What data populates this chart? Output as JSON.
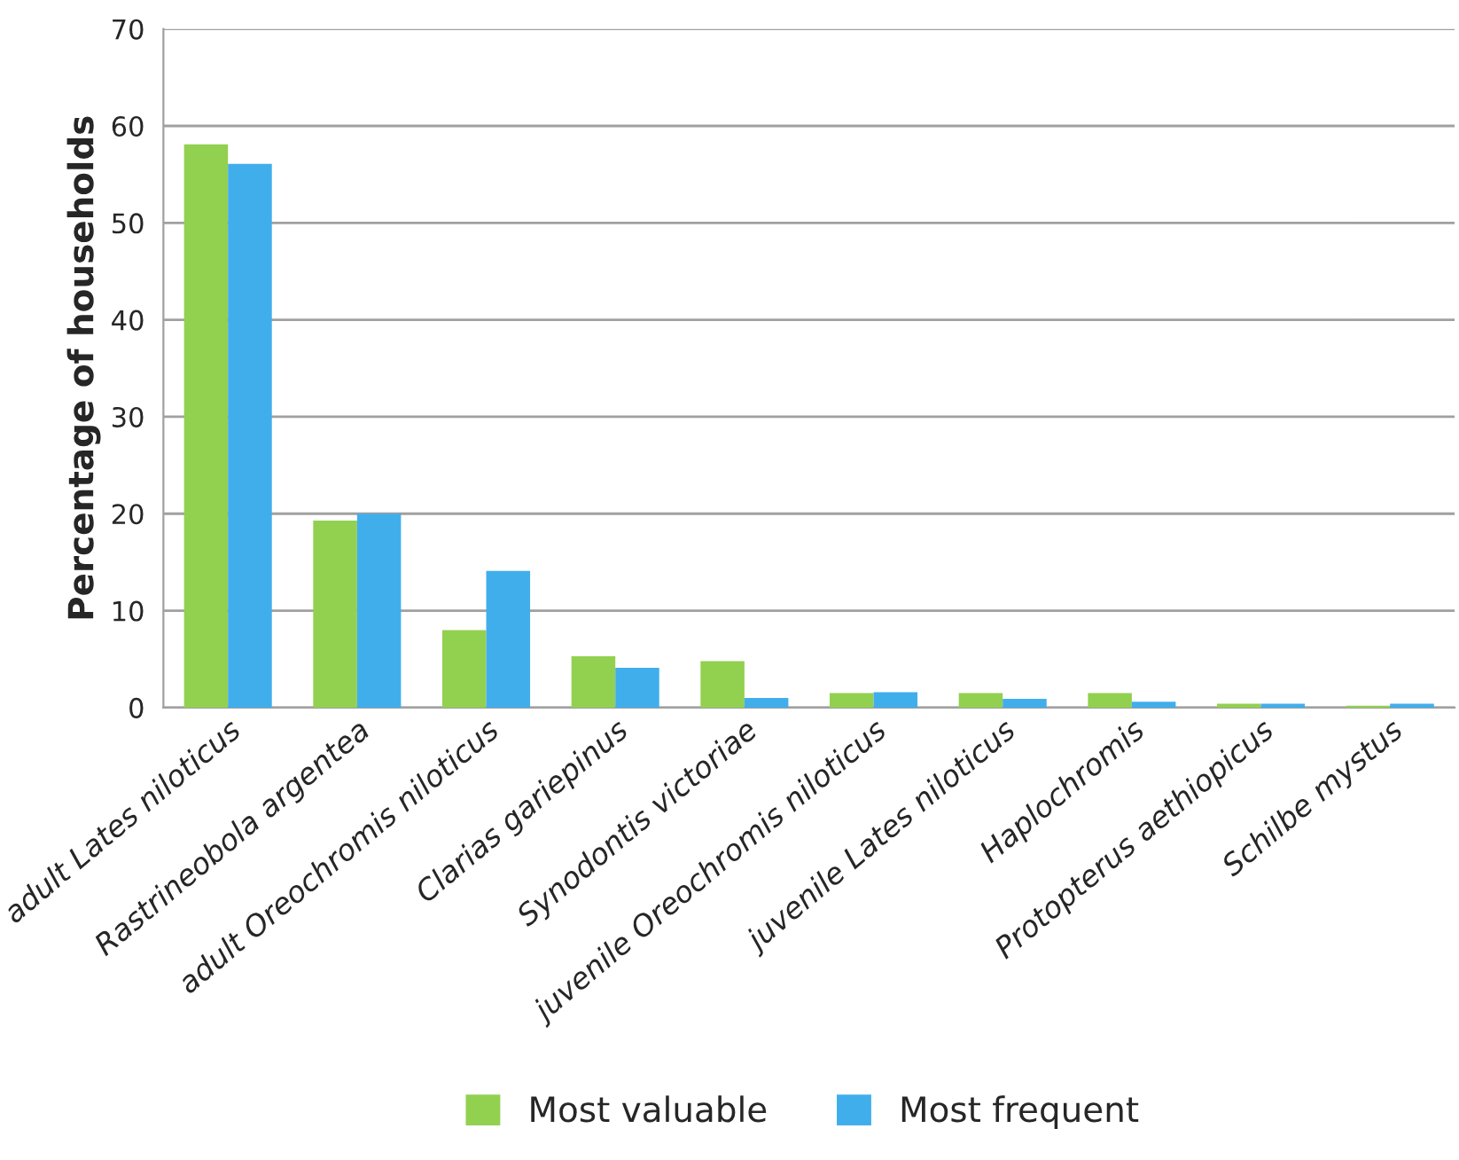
{
  "chart_data": {
    "type": "bar",
    "ylabel": "Percentage of households",
    "categories": [
      "adult Lates niloticus",
      "Rastrineobola argentea",
      "adult Oreochromis niloticus",
      "Clarias gariepinus",
      "Synodontis victoriae",
      "juvenile Oreochromis niloticus",
      "juvenile Lates niloticus",
      "Haplochromis",
      "Protopterus aethiopicus",
      "Schilbe mystus"
    ],
    "series": [
      {
        "name": "Most valuable",
        "color": "#92d050",
        "values": [
          58.1,
          19.3,
          8.0,
          5.3,
          4.8,
          1.5,
          1.5,
          1.5,
          0.4,
          0.2
        ]
      },
      {
        "name": "Most frequent",
        "color": "#41aeec",
        "values": [
          56.1,
          20.0,
          14.1,
          4.1,
          1.0,
          1.6,
          0.9,
          0.6,
          0.4,
          0.4
        ]
      }
    ],
    "ylim": [
      0,
      70
    ],
    "yticks": [
      0,
      10,
      20,
      30,
      40,
      50,
      60,
      70
    ],
    "grid": "y",
    "legend": "bottom"
  }
}
